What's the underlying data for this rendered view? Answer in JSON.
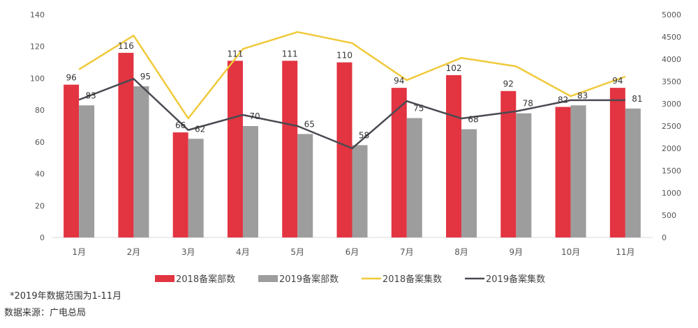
{
  "chart_data": {
    "type": "bar",
    "categories": [
      "1月",
      "2月",
      "3月",
      "4月",
      "5月",
      "6月",
      "7月",
      "8月",
      "9月",
      "10月",
      "11月"
    ],
    "y_left": {
      "range": [
        0,
        140
      ],
      "ticks": [
        0,
        20,
        40,
        60,
        80,
        100,
        120,
        140
      ]
    },
    "y_right": {
      "range": [
        0,
        5000
      ],
      "ticks": [
        0,
        500,
        1000,
        1500,
        2000,
        2500,
        3000,
        3500,
        4000,
        4500,
        5000
      ]
    },
    "grid": false,
    "legend_position": "bottom",
    "series": [
      {
        "name": "2018备案部数",
        "kind": "bar",
        "axis": "left",
        "color": "#e23441",
        "values": [
          96,
          116,
          66,
          111,
          111,
          110,
          94,
          102,
          92,
          82,
          94
        ],
        "labels": true
      },
      {
        "name": "2019备案部数",
        "kind": "bar",
        "axis": "left",
        "color": "#9e9d9e",
        "values": [
          83,
          95,
          62,
          70,
          65,
          58,
          75,
          68,
          78,
          83,
          81
        ],
        "labels": true
      },
      {
        "name": "2018备案集数",
        "kind": "line",
        "axis": "right",
        "color": "#f0c93a",
        "values": [
          3770,
          4530,
          2670,
          4230,
          4610,
          4360,
          3530,
          4030,
          3840,
          3170,
          3610
        ]
      },
      {
        "name": "2019备案集数",
        "kind": "line",
        "axis": "right",
        "color": "#4a4a52",
        "values": [
          3090,
          3560,
          2410,
          2750,
          2500,
          2000,
          3060,
          2670,
          2830,
          3080,
          3080
        ]
      }
    ]
  },
  "notes": {
    "footnote": "*2019年数据范围为1-11月",
    "source": "数据来源：广电总局"
  }
}
